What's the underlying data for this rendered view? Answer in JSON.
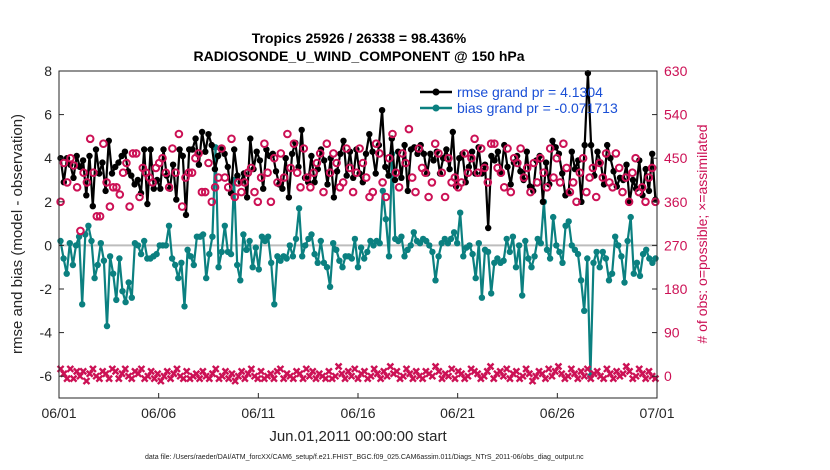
{
  "chart_data": {
    "type": "line",
    "title_line1": "Tropics 25926 / 26338 = 98.436%",
    "title_line2": "RADIOSONDE_U_WIND_COMPONENT @ 150 hPa",
    "xlabel": "Jun.01,2011 00:00:00 start",
    "ylabel": "rmse and bias (model - observation)",
    "ylabel_right": "# of obs: o=possible; ×=assimilated",
    "xlim": [
      0,
      30
    ],
    "ylim": [
      -7,
      8
    ],
    "ylim_right": [
      -45,
      630
    ],
    "x_ticks": [
      0,
      5,
      10,
      15,
      20,
      25,
      30
    ],
    "x_tick_labels": [
      "06/01",
      "06/06",
      "06/11",
      "06/16",
      "06/21",
      "06/26",
      "07/01"
    ],
    "y_ticks": [
      -6,
      -4,
      -2,
      0,
      2,
      4,
      6,
      8
    ],
    "y_tick_labels": [
      "-6",
      "-4",
      "-2",
      "0",
      "2",
      "4",
      "6",
      "8"
    ],
    "y_right_ticks": [
      0,
      90,
      180,
      270,
      360,
      450,
      540,
      630
    ],
    "y_right_tick_labels": [
      "0",
      "90",
      "180",
      "270",
      "360",
      "450",
      "540",
      "630"
    ],
    "zero_line": 0,
    "legend": [
      {
        "name": "rmse grand pr = 4.1304",
        "color": "#000000"
      },
      {
        "name": "bias grand pr = -0.071713",
        "color": "#0b8080"
      }
    ],
    "series": [
      {
        "name": "rmse",
        "axis": "left",
        "color": "#000000",
        "values": [
          4.0,
          2.9,
          4.0,
          3.7,
          3.1,
          4.1,
          3.6,
          3.9,
          2.3,
          4.1,
          1.8,
          4.4,
          3.3,
          3.8,
          2.5,
          4.8,
          3.3,
          3.6,
          3.8,
          4.1,
          4.3,
          3.4,
          3.2,
          2.8,
          3.0,
          2.4,
          4.4,
          1.9,
          4.4,
          2.6,
          3.0,
          2.6,
          4.4,
          3.2,
          2.6,
          3.7,
          2.1,
          4.4,
          4.1,
          1.4,
          4.4,
          4.4,
          4.9,
          3.7,
          5.2,
          4.3,
          5.1,
          4.6,
          3.5,
          4.1,
          4.4,
          4.2,
          3.6,
          2.4,
          4.4,
          3.2,
          2.9,
          3.3,
          2.2,
          4.9,
          3.5,
          4.3,
          3.9,
          2.6,
          4.4,
          4.1,
          4.2,
          3.4,
          2.8,
          2.6,
          4.0,
          2.2,
          4.2,
          4.7,
          3.6,
          5.3,
          3.1,
          2.9,
          4.1,
          2.9,
          3.5,
          4.4,
          3.9,
          2.8,
          4.0,
          2.2,
          3.4,
          4.2,
          4.8,
          3.2,
          4.3,
          3.1,
          4.4,
          3.3,
          2.9,
          4.2,
          5.1,
          4.3,
          3.3,
          4.6,
          6.2,
          3.6,
          3.2,
          4.9,
          3.0,
          4.3,
          3.1,
          4.6,
          2.5,
          4.4,
          4.5,
          4.2,
          4.6,
          4.2,
          3.3,
          4.2,
          3.9,
          4.3,
          3.3,
          4.0,
          4.4,
          3.5,
          5.2,
          2.7,
          4.0,
          4.2,
          2.9,
          3.6,
          4.3,
          3.3,
          4.5,
          3.3,
          3.7,
          0.8,
          4.1,
          3.9,
          4.3,
          3.3,
          4.6,
          3.6,
          2.8,
          3.8,
          4.1,
          3.4,
          3.0,
          4.3,
          2.7,
          2.5,
          3.9,
          4.1,
          2.0,
          3.8,
          2.8,
          4.8,
          4.5,
          4.2,
          3.3,
          2.3,
          2.4,
          4.3,
          3.5,
          3.9,
          2.0,
          4.6,
          7.9,
          4.6,
          3.2,
          4.3,
          3.8,
          2.8,
          4.6,
          4.0,
          3.4,
          2.7,
          3.1,
          3.0,
          3.7,
          2.0,
          3.0,
          2.6,
          3.9,
          2.3,
          3.5,
          2.5,
          4.2,
          2.1
        ]
      },
      {
        "name": "bias",
        "axis": "left",
        "color": "#0b8080",
        "values": [
          0.2,
          -0.6,
          -1.3,
          0.1,
          -0.9,
          0.0,
          0.4,
          -2.7,
          0.5,
          0.9,
          0.2,
          -1.5,
          -0.9,
          0.1,
          -0.7,
          -3.7,
          -0.5,
          -1.3,
          -2.5,
          -0.6,
          -2.1,
          -2.6,
          -1.7,
          -2.4,
          0.1,
          0.0,
          -0.4,
          0.2,
          -0.6,
          -0.6,
          -0.5,
          -0.4,
          0.0,
          0.0,
          0.0,
          0.9,
          -0.6,
          -0.9,
          -1.5,
          -0.8,
          -2.8,
          -0.2,
          -0.5,
          -0.9,
          0.4,
          0.4,
          0.5,
          -1.5,
          -0.4,
          0.4,
          4.5,
          -1.0,
          -0.3,
          0.9,
          -0.3,
          -0.4,
          3.0,
          -0.9,
          -1.6,
          0.5,
          -0.2,
          0.2,
          -1.0,
          -0.1,
          -1.1,
          0.4,
          0.2,
          0.4,
          -0.8,
          -2.7,
          -0.5,
          -0.7,
          -0.5,
          -0.6,
          0.0,
          -0.5,
          0.3,
          1.7,
          -0.5,
          0.0,
          0.3,
          0.5,
          -0.4,
          -0.8,
          0.2,
          -0.8,
          -1.0,
          -1.9,
          0.1,
          -0.2,
          -0.7,
          -1.0,
          -0.5,
          -0.5,
          -0.6,
          0.3,
          -1.0,
          -0.1,
          -0.6,
          -0.3,
          0.2,
          0.0,
          0.2,
          0.1,
          2.5,
          1.2,
          -0.5,
          4.2,
          0.3,
          0.2,
          0.4,
          -0.5,
          -0.2,
          0.0,
          0.6,
          0.2,
          0.1,
          0.3,
          0.2,
          0.0,
          -0.3,
          -1.6,
          -0.5,
          0.1,
          0.3,
          0.1,
          0.3,
          0.6,
          0.1,
          1.5,
          -0.5,
          -0.1,
          0.0,
          -0.4,
          -1.5,
          0.1,
          -2.4,
          -0.2,
          -0.3,
          -2.2,
          -0.8,
          -0.6,
          -0.8,
          -0.7,
          0.3,
          -0.3,
          0.4,
          -1.0,
          0.0,
          -2.3,
          0.2,
          -0.6,
          -1.0,
          -0.5,
          0.3,
          0.1,
          2.0,
          -0.2,
          -0.6,
          1.3,
          0.0,
          -0.3,
          -0.8,
          0.9,
          1.1,
          0.0,
          -0.2,
          -0.4,
          -1.6,
          -3.0,
          -0.6,
          -6.0,
          -0.8,
          -0.3,
          -1.0,
          -0.3,
          -0.6,
          -1.6,
          -1.3,
          0.4,
          0.0,
          -0.5,
          -1.7,
          0.2,
          1.3,
          -1.3,
          -0.8,
          -1.4,
          -0.4,
          -0.2,
          -0.6,
          -0.8,
          -0.6
        ]
      },
      {
        "name": "possible obs",
        "axis": "right",
        "color": "#cc1155",
        "values": [
          360,
          440,
          400,
          450,
          435,
          390,
          300,
          420,
          400,
          490,
          420,
          330,
          330,
          480,
          400,
          350,
          390,
          390,
          375,
          420,
          440,
          350,
          460,
          460,
          370,
          430,
          420,
          410,
          400,
          430,
          440,
          450,
          420,
          390,
          470,
          420,
          500,
          350,
          410,
          420,
          420,
          450,
          460,
          380,
          380,
          440,
          360,
          390,
          410,
          470,
          410,
          390,
          490,
          370,
          400,
          380,
          400,
          420,
          430,
          380,
          360,
          410,
          480,
          420,
          360,
          450,
          400,
          460,
          410,
          500,
          430,
          480,
          420,
          390,
          470,
          410,
          390,
          420,
          440,
          460,
          380,
          480,
          420,
          460,
          440,
          390,
          400,
          470,
          430,
          380,
          420,
          470,
          440,
          410,
          370,
          380,
          480,
          460,
          400,
          370,
          450,
          500,
          420,
          390,
          460,
          440,
          510,
          410,
          380,
          470,
          430,
          420,
          370,
          400,
          480,
          460,
          420,
          370,
          450,
          400,
          410,
          390,
          400,
          460,
          420,
          450,
          490,
          420,
          470,
          430,
          400,
          480,
          480,
          430,
          420,
          390,
          470,
          380,
          450,
          440,
          470,
          410,
          430,
          380,
          440,
          400,
          450,
          420,
          390,
          470,
          410,
          450,
          400,
          480,
          430,
          380,
          400,
          360,
          420,
          450,
          380,
          410,
          430,
          370,
          440,
          410,
          460,
          400,
          390,
          460,
          430,
          380,
          410,
          360,
          420,
          450,
          380,
          390,
          360,
          410,
          430,
          360
        ]
      },
      {
        "name": "assimilated obs",
        "axis": "right",
        "color": "#cc1155",
        "values": [
          15,
          5,
          -5,
          15,
          -5,
          10,
          0,
          10,
          -10,
          5,
          15,
          0,
          -5,
          10,
          5,
          -5,
          15,
          10,
          -5,
          5,
          15,
          0,
          -5,
          10,
          5,
          15,
          -5,
          0,
          10,
          -5,
          5,
          -10,
          0,
          10,
          -5,
          5,
          15,
          0,
          -5,
          10,
          -5,
          0,
          5,
          -5,
          10,
          0,
          -5,
          5,
          15,
          -5,
          0,
          10,
          -5,
          5,
          -10,
          0,
          10,
          -5,
          5,
          15,
          0,
          -5,
          10,
          -5,
          0,
          5,
          -5,
          10,
          15,
          -5,
          5,
          0,
          -5,
          10,
          5,
          -5,
          15,
          0,
          10,
          -5,
          5,
          0,
          -5,
          10,
          -5,
          0,
          20,
          5,
          -5,
          10,
          0,
          15,
          -5,
          5,
          10,
          -5,
          0,
          15,
          5,
          -5,
          10,
          0,
          20,
          5,
          10,
          -5,
          0,
          15,
          5,
          -5,
          10,
          0,
          -5,
          10,
          5,
          0,
          20,
          10,
          -5,
          5,
          0,
          15,
          -5,
          10,
          5,
          -5,
          0,
          15,
          10,
          5,
          -5,
          0,
          10,
          20,
          -5,
          5,
          10,
          0,
          15,
          -5,
          5,
          10,
          -5,
          0,
          15,
          5,
          -10,
          0,
          10,
          5,
          -5,
          15,
          0,
          10,
          20,
          5,
          -5,
          0,
          15,
          5,
          -5,
          10,
          0,
          15,
          -5,
          5,
          10,
          0,
          -5,
          15,
          5,
          -5,
          10,
          0,
          5,
          20,
          10,
          -5,
          0,
          15,
          5,
          -5,
          10,
          0,
          -5
        ]
      }
    ]
  },
  "footer": {
    "data_file": "data file: /Users/raeder/DAI/ATM_forcXX/CAM6_setup/f.e21.FHIST_BGC.f09_025.CAM6assim.011/Diags_NTrS_2011-06/obs_diag_output.nc"
  }
}
